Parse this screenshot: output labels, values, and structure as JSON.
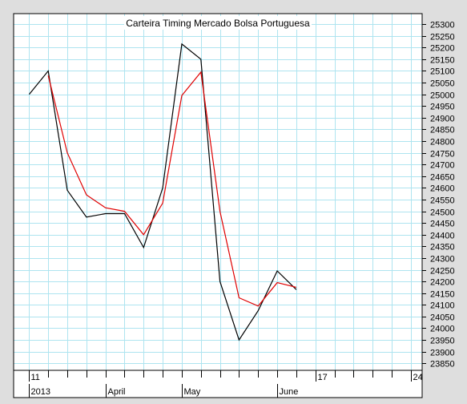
{
  "chart_data": {
    "type": "line",
    "title": "Carteira Timing Mercado Bolsa Portuguesa",
    "xlabel": "",
    "ylabel": "",
    "ylim": [
      23820,
      25345
    ],
    "y_ticks": [
      23850,
      23900,
      23950,
      24000,
      24050,
      24100,
      24150,
      24200,
      24250,
      24300,
      24350,
      24400,
      24450,
      24500,
      24550,
      24600,
      24650,
      24700,
      24750,
      24800,
      24850,
      24900,
      24950,
      25000,
      25050,
      25100,
      25150,
      25200,
      25250,
      25300
    ],
    "x_range": [
      -0.1,
      20.3
    ],
    "x_top_labels": [
      {
        "x": 0,
        "text": "11"
      },
      {
        "x": 15,
        "text": "17"
      },
      {
        "x": 20,
        "text": "24"
      }
    ],
    "x_bottom_labels": [
      {
        "x": 0,
        "text": "2013"
      },
      {
        "x": 4,
        "text": "April"
      },
      {
        "x": 8,
        "text": "May"
      },
      {
        "x": 13,
        "text": "June"
      }
    ],
    "grid": true,
    "colors": {
      "series_black": "#000000",
      "series_red": "#e00000",
      "grid": "#aee4f0",
      "background": "#ffffff"
    },
    "series": [
      {
        "color": "#000000",
        "x": [
          0,
          1,
          2,
          3,
          4,
          5,
          6,
          7,
          8,
          9,
          10,
          11,
          12,
          13,
          14
        ],
        "y": [
          25000,
          25100,
          24590,
          24475,
          24490,
          24490,
          24345,
          24600,
          25215,
          25150,
          24200,
          23950,
          24075,
          24245,
          24165
        ]
      },
      {
        "color": "#e00000",
        "x": [
          1,
          2,
          3,
          4,
          5,
          6,
          7,
          8,
          9,
          10,
          11,
          12,
          13,
          14
        ],
        "y": [
          25080,
          24750,
          24570,
          24515,
          24500,
          24400,
          24535,
          24995,
          25095,
          24500,
          24130,
          24095,
          24195,
          24175
        ]
      }
    ]
  }
}
